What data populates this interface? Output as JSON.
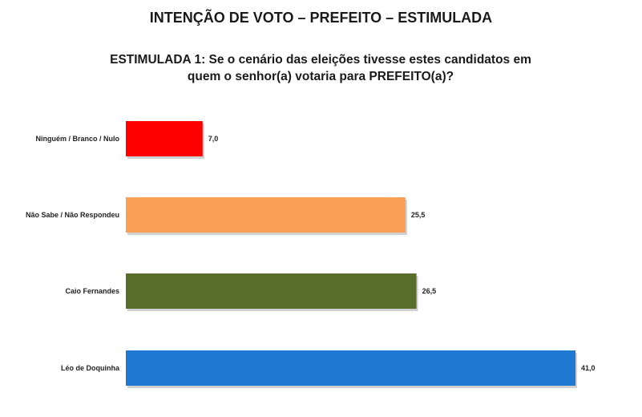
{
  "title": "INTENÇÃO DE VOTO – PREFEITO – ESTIMULADA",
  "question_line1": "ESTIMULADA 1: Se o cenário das eleições tivesse estes candidatos em",
  "question_line2": "quem o senhor(a) votaria para PREFEITO(a)?",
  "chart_data": {
    "type": "bar",
    "orientation": "horizontal",
    "categories": [
      "Ninguém / Branco / Nulo",
      "Não Sabe / Não Respondeu",
      "Caio Fernandes",
      "Léo de Doquinha"
    ],
    "values": [
      7.0,
      25.5,
      26.5,
      41.0
    ],
    "value_labels": [
      "7,0",
      "25,5",
      "26,5",
      "41,0"
    ],
    "colors": [
      "#ff0000",
      "#f9a055",
      "#5a6e2c",
      "#1f78d1"
    ],
    "xlim": [
      0,
      41.0
    ],
    "grid": false,
    "legend": "none"
  }
}
